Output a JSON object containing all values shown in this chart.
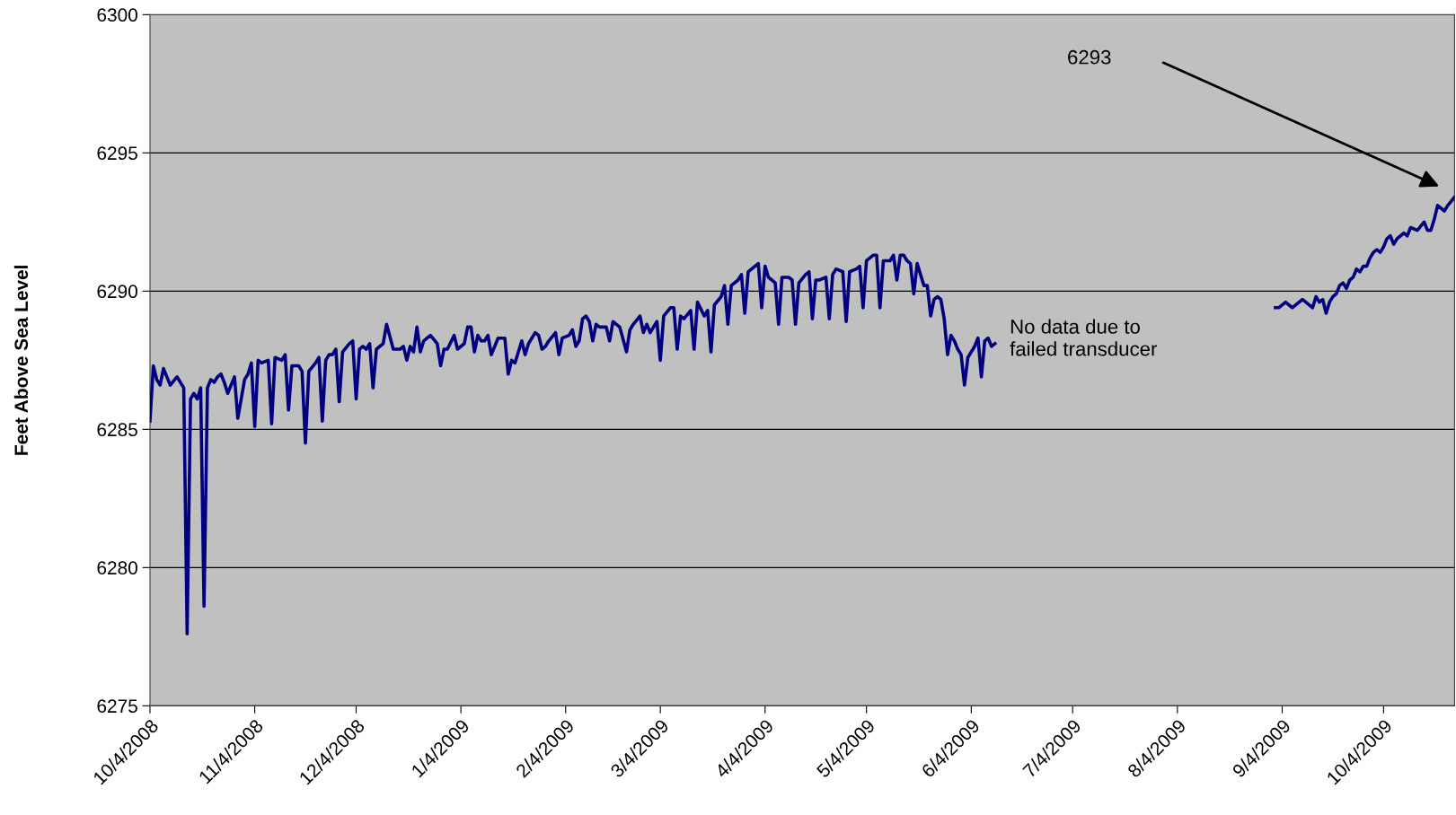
{
  "chart_data": {
    "type": "line",
    "ylabel": "Feet Above Sea Level",
    "x": [
      "2008-10-04",
      "2008-10-05",
      "2008-10-06",
      "2008-10-07",
      "2008-10-08",
      "2008-10-09",
      "2008-10-10",
      "2008-10-12",
      "2008-10-13",
      "2008-10-14",
      "2008-10-15",
      "2008-10-16",
      "2008-10-17",
      "2008-10-18",
      "2008-10-19",
      "2008-10-20",
      "2008-10-21",
      "2008-10-22",
      "2008-10-23",
      "2008-10-24",
      "2008-10-25",
      "2008-10-26",
      "2008-10-27",
      "2008-10-29",
      "2008-10-30",
      "2008-11-01",
      "2008-11-02",
      "2008-11-03",
      "2008-11-04",
      "2008-11-05",
      "2008-11-06",
      "2008-11-08",
      "2008-11-09",
      "2008-11-10",
      "2008-11-12",
      "2008-11-13",
      "2008-11-14",
      "2008-11-15",
      "2008-11-17",
      "2008-11-18",
      "2008-11-19",
      "2008-11-20",
      "2008-11-22",
      "2008-11-23",
      "2008-11-24",
      "2008-11-25",
      "2008-11-26",
      "2008-11-27",
      "2008-11-28",
      "2008-11-29",
      "2008-11-30",
      "2008-12-02",
      "2008-12-03",
      "2008-12-04",
      "2008-12-05",
      "2008-12-06",
      "2008-12-07",
      "2008-12-08",
      "2008-12-09",
      "2008-12-10",
      "2008-12-12",
      "2008-12-13",
      "2008-12-15",
      "2008-12-17",
      "2008-12-18",
      "2008-12-19",
      "2008-12-20",
      "2008-12-21",
      "2008-12-22",
      "2008-12-23",
      "2008-12-24",
      "2008-12-25",
      "2008-12-26",
      "2008-12-28",
      "2008-12-29",
      "2008-12-30",
      "2008-12-31",
      "2009-01-02",
      "2009-01-03",
      "2009-01-05",
      "2009-01-06",
      "2009-01-07",
      "2009-01-08",
      "2009-01-09",
      "2009-01-10",
      "2009-01-11",
      "2009-01-12",
      "2009-01-13",
      "2009-01-15",
      "2009-01-17",
      "2009-01-18",
      "2009-01-19",
      "2009-01-20",
      "2009-01-22",
      "2009-01-23",
      "2009-01-24",
      "2009-01-26",
      "2009-01-27",
      "2009-01-28",
      "2009-01-29",
      "2009-01-30",
      "2009-02-01",
      "2009-02-02",
      "2009-02-03",
      "2009-02-05",
      "2009-02-06",
      "2009-02-07",
      "2009-02-08",
      "2009-02-09",
      "2009-02-10",
      "2009-02-11",
      "2009-02-12",
      "2009-02-13",
      "2009-02-14",
      "2009-02-16",
      "2009-02-17",
      "2009-02-18",
      "2009-02-19",
      "2009-02-20",
      "2009-02-22",
      "2009-02-23",
      "2009-02-24",
      "2009-02-26",
      "2009-02-27",
      "2009-02-28",
      "2009-03-01",
      "2009-03-03",
      "2009-03-04",
      "2009-03-05",
      "2009-03-07",
      "2009-03-08",
      "2009-03-09",
      "2009-03-10",
      "2009-03-11",
      "2009-03-13",
      "2009-03-14",
      "2009-03-15",
      "2009-03-17",
      "2009-03-18",
      "2009-03-19",
      "2009-03-20",
      "2009-03-22",
      "2009-03-23",
      "2009-03-24",
      "2009-03-25",
      "2009-03-27",
      "2009-03-28",
      "2009-03-29",
      "2009-03-30",
      "2009-04-01",
      "2009-04-02",
      "2009-04-03",
      "2009-04-04",
      "2009-04-05",
      "2009-04-06",
      "2009-04-07",
      "2009-04-08",
      "2009-04-09",
      "2009-04-11",
      "2009-04-12",
      "2009-04-13",
      "2009-04-14",
      "2009-04-16",
      "2009-04-17",
      "2009-04-18",
      "2009-04-19",
      "2009-04-20",
      "2009-04-22",
      "2009-04-23",
      "2009-04-24",
      "2009-04-25",
      "2009-04-27",
      "2009-04-28",
      "2009-04-29",
      "2009-05-01",
      "2009-05-02",
      "2009-05-03",
      "2009-05-04",
      "2009-05-06",
      "2009-05-07",
      "2009-05-08",
      "2009-05-09",
      "2009-05-11",
      "2009-05-12",
      "2009-05-13",
      "2009-05-14",
      "2009-05-15",
      "2009-05-16",
      "2009-05-17",
      "2009-05-18",
      "2009-05-19",
      "2009-05-20",
      "2009-05-21",
      "2009-05-22",
      "2009-05-23",
      "2009-05-24",
      "2009-05-25",
      "2009-05-26",
      "2009-05-27",
      "2009-05-28",
      "2009-05-29",
      "2009-05-30",
      "2009-05-31",
      "2009-06-01",
      "2009-06-02",
      "2009-06-03",
      "2009-06-05",
      "2009-06-06",
      "2009-06-07",
      "2009-06-08",
      "2009-06-09",
      "2009-06-10",
      "2009-06-11",
      "2009-07-20",
      "2009-09-02",
      "2009-09-03",
      "2009-09-05",
      "2009-09-06",
      "2009-09-07",
      "2009-09-09",
      "2009-09-10",
      "2009-09-11",
      "2009-09-13",
      "2009-09-14",
      "2009-09-15",
      "2009-09-16",
      "2009-09-17",
      "2009-09-18",
      "2009-09-19",
      "2009-09-20",
      "2009-09-21",
      "2009-09-22",
      "2009-09-23",
      "2009-09-24",
      "2009-09-25",
      "2009-09-26",
      "2009-09-27",
      "2009-09-28",
      "2009-09-29",
      "2009-09-30",
      "2009-10-01",
      "2009-10-02",
      "2009-10-03",
      "2009-10-04",
      "2009-10-05",
      "2009-10-06",
      "2009-10-07",
      "2009-10-08",
      "2009-10-09",
      "2009-10-10",
      "2009-10-11",
      "2009-10-12",
      "2009-10-14",
      "2009-10-16",
      "2009-10-17",
      "2009-10-18",
      "2009-10-19",
      "2009-10-20",
      "2009-10-22",
      "2009-10-23",
      "2009-10-25"
    ],
    "series": [
      {
        "color": "#000080",
        "values": [
          6285.3,
          6287.3,
          6286.8,
          6286.6,
          6287.2,
          6286.9,
          6286.6,
          6286.9,
          6286.7,
          6286.5,
          6277.6,
          6286.1,
          6286.3,
          6286.1,
          6286.5,
          6278.6,
          6286.5,
          6286.8,
          6286.7,
          6286.9,
          6287.0,
          6286.7,
          6286.3,
          6286.9,
          6285.4,
          6286.8,
          6287.0,
          6287.4,
          6285.1,
          6287.5,
          6287.4,
          6287.5,
          6285.2,
          6287.6,
          6287.5,
          6287.7,
          6285.7,
          6287.3,
          6287.3,
          6287.1,
          6284.5,
          6287.1,
          6287.4,
          6287.6,
          6285.3,
          6287.5,
          6287.7,
          6287.7,
          6287.9,
          6286.0,
          6287.8,
          6288.1,
          6288.2,
          6286.1,
          6287.9,
          6288.0,
          6287.9,
          6288.1,
          6286.5,
          6287.9,
          6288.1,
          6288.8,
          6287.9,
          6287.9,
          6288.0,
          6287.5,
          6288.0,
          6287.8,
          6288.7,
          6287.8,
          6288.2,
          6288.3,
          6288.4,
          6288.1,
          6287.3,
          6287.9,
          6287.9,
          6288.4,
          6287.9,
          6288.1,
          6288.7,
          6288.7,
          6287.8,
          6288.4,
          6288.2,
          6288.2,
          6288.4,
          6287.7,
          6288.3,
          6288.3,
          6287.0,
          6287.5,
          6287.4,
          6288.2,
          6287.7,
          6288.1,
          6288.5,
          6288.4,
          6287.9,
          6288.0,
          6288.2,
          6288.5,
          6287.7,
          6288.3,
          6288.4,
          6288.6,
          6288.0,
          6288.2,
          6289.0,
          6289.1,
          6288.9,
          6288.2,
          6288.8,
          6288.7,
          6288.7,
          6288.2,
          6288.9,
          6288.8,
          6288.7,
          6287.8,
          6288.6,
          6288.8,
          6289.1,
          6288.5,
          6288.8,
          6288.5,
          6288.9,
          6287.5,
          6289.1,
          6289.4,
          6289.4,
          6287.9,
          6289.1,
          6289.0,
          6289.3,
          6287.9,
          6289.6,
          6289.1,
          6289.3,
          6287.8,
          6289.5,
          6289.8,
          6290.2,
          6288.8,
          6290.2,
          6290.4,
          6290.6,
          6289.2,
          6290.7,
          6290.9,
          6291.0,
          6289.4,
          6290.9,
          6290.5,
          6290.4,
          6290.3,
          6288.8,
          6290.5,
          6290.5,
          6290.4,
          6288.8,
          6290.3,
          6290.6,
          6290.7,
          6289.0,
          6290.4,
          6290.4,
          6290.5,
          6289.0,
          6290.6,
          6290.8,
          6290.7,
          6288.9,
          6290.7,
          6290.8,
          6290.9,
          6289.4,
          6291.1,
          6291.3,
          6291.3,
          6289.4,
          6291.1,
          6291.1,
          6291.3,
          6290.4,
          6291.3,
          6291.3,
          6291.1,
          6291.0,
          6289.9,
          6291.0,
          6290.6,
          6290.2,
          6290.2,
          6289.1,
          6289.7,
          6289.8,
          6289.7,
          6289.0,
          6287.7,
          6288.4,
          6288.2,
          6287.9,
          6287.7,
          6286.6,
          6287.6,
          6288.0,
          6288.3,
          6286.9,
          6288.2,
          6288.3,
          6288.0,
          6288.1,
          null,
          6289.4,
          6289.4,
          6289.6,
          6289.5,
          6289.4,
          6289.6,
          6289.7,
          6289.6,
          6289.4,
          6289.8,
          6289.6,
          6289.7,
          6289.2,
          6289.6,
          6289.8,
          6289.9,
          6290.2,
          6290.3,
          6290.1,
          6290.4,
          6290.5,
          6290.8,
          6290.7,
          6290.9,
          6290.9,
          6291.2,
          6291.4,
          6291.5,
          6291.4,
          6291.6,
          6291.9,
          6292.0,
          6291.7,
          6291.9,
          6292.0,
          6292.1,
          6292.0,
          6292.3,
          6292.2,
          6292.5,
          6292.2,
          6292.2,
          6292.6,
          6293.1,
          6292.9,
          6293.1,
          6293.4
        ]
      }
    ],
    "xlim": [
      "2008-10-04",
      "2009-10-25"
    ],
    "xticks": [
      {
        "value": "2008-10-04",
        "label": "10/4/2008"
      },
      {
        "value": "2008-11-04",
        "label": "11/4/2008"
      },
      {
        "value": "2008-12-04",
        "label": "12/4/2008"
      },
      {
        "value": "2009-01-04",
        "label": "1/4/2009"
      },
      {
        "value": "2009-02-04",
        "label": "2/4/2009"
      },
      {
        "value": "2009-03-04",
        "label": "3/4/2009"
      },
      {
        "value": "2009-04-04",
        "label": "4/4/2009"
      },
      {
        "value": "2009-05-04",
        "label": "5/4/2009"
      },
      {
        "value": "2009-06-04",
        "label": "6/4/2009"
      },
      {
        "value": "2009-07-04",
        "label": "7/4/2009"
      },
      {
        "value": "2009-08-04",
        "label": "8/4/2009"
      },
      {
        "value": "2009-09-04",
        "label": "9/4/2009"
      },
      {
        "value": "2009-10-04",
        "label": "10/4/2009"
      }
    ],
    "ylim": [
      6275,
      6300
    ],
    "yticks": [
      6275,
      6280,
      6285,
      6290,
      6295,
      6300
    ],
    "grid": "y",
    "line_style": "solid",
    "annotations": [
      "No data due to\nfailed transducer",
      "6293"
    ]
  }
}
